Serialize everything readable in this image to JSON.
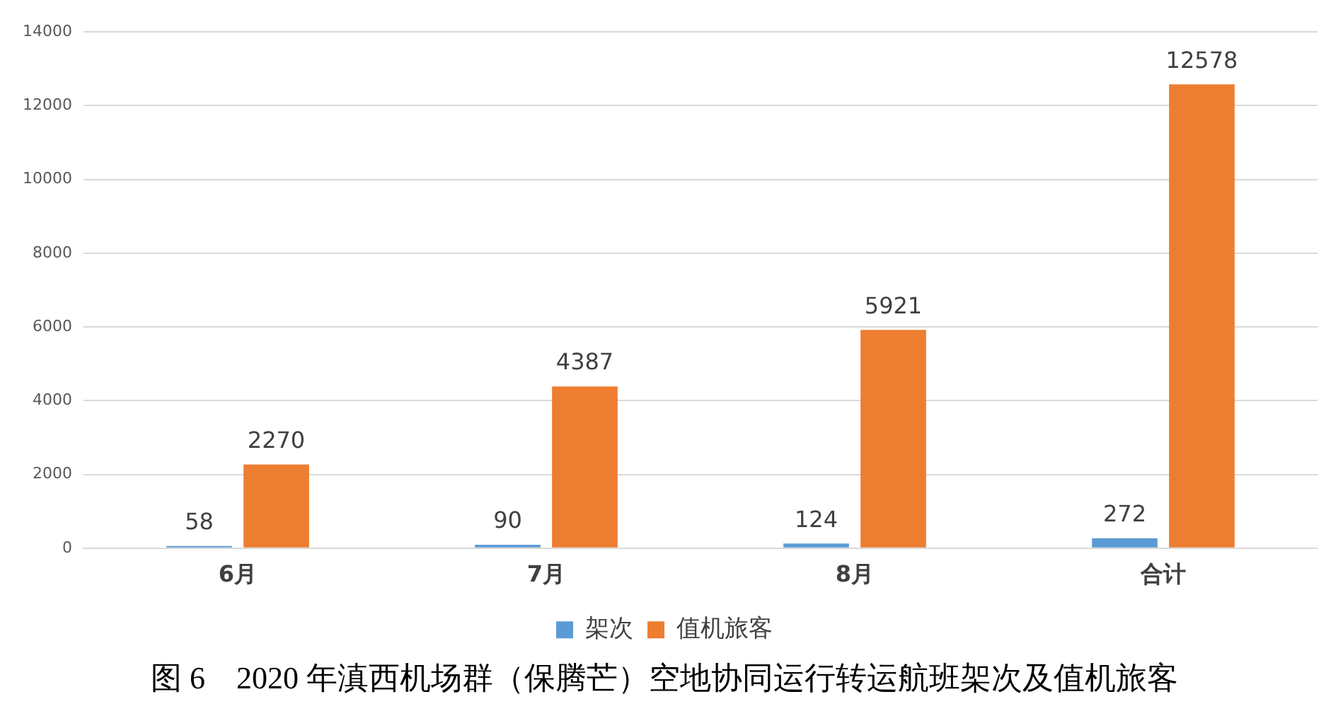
{
  "chart_data": {
    "type": "bar",
    "title": "图 6　2020 年滇西机场群（保腾芒）空地协同运行转运航班架次及值机旅客",
    "categories": [
      "6月",
      "7月",
      "8月",
      "合计"
    ],
    "series": [
      {
        "name": "架次",
        "color": "#5b9bd5",
        "values": [
          58,
          90,
          124,
          272
        ]
      },
      {
        "name": "值机旅客",
        "color": "#ed7d31",
        "values": [
          2270,
          4387,
          5921,
          12578
        ]
      }
    ],
    "ylim": [
      0,
      14000
    ],
    "yticks": [
      0,
      2000,
      4000,
      6000,
      8000,
      10000,
      12000,
      14000
    ],
    "grid": "y",
    "legend": "bottom",
    "data_labels": true
  }
}
